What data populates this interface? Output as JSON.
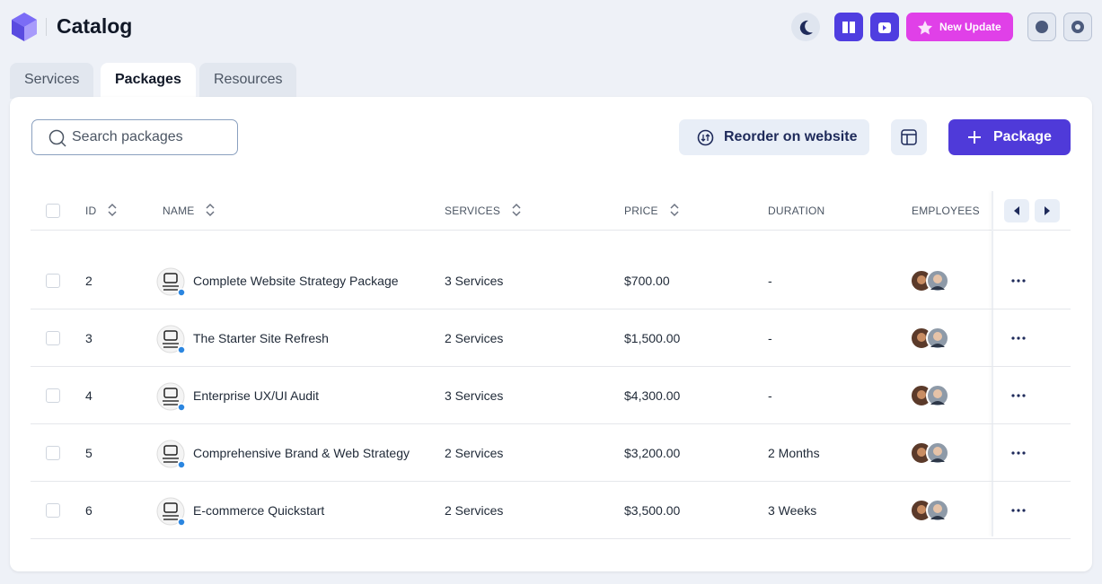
{
  "header": {
    "title": "Catalog",
    "update_button": "New Update"
  },
  "tabs": [
    "Services",
    "Packages",
    "Resources"
  ],
  "toolbar": {
    "search_placeholder": "Search packages",
    "reorder_button": "Reorder on website",
    "add_button": "Package"
  },
  "table": {
    "columns": [
      "ID",
      "NAME",
      "SERVICES",
      "PRICE",
      "DURATION",
      "EMPLOYEES"
    ],
    "rows": [
      [
        "2",
        "Complete Website Strategy Package",
        "3 Services",
        "$700.00",
        "-"
      ],
      [
        "3",
        "The Starter Site Refresh",
        "2 Services",
        "$1,500.00",
        "-"
      ],
      [
        "4",
        "Enterprise UX/UI Audit",
        "3 Services",
        "$4,300.00",
        "-"
      ],
      [
        "5",
        "Comprehensive Brand & Web Strategy",
        "2 Services",
        "$3,200.00",
        "2 Months"
      ],
      [
        "6",
        "E-commerce Quickstart",
        "2 Services",
        "$3,500.00",
        "3 Weeks"
      ]
    ]
  }
}
